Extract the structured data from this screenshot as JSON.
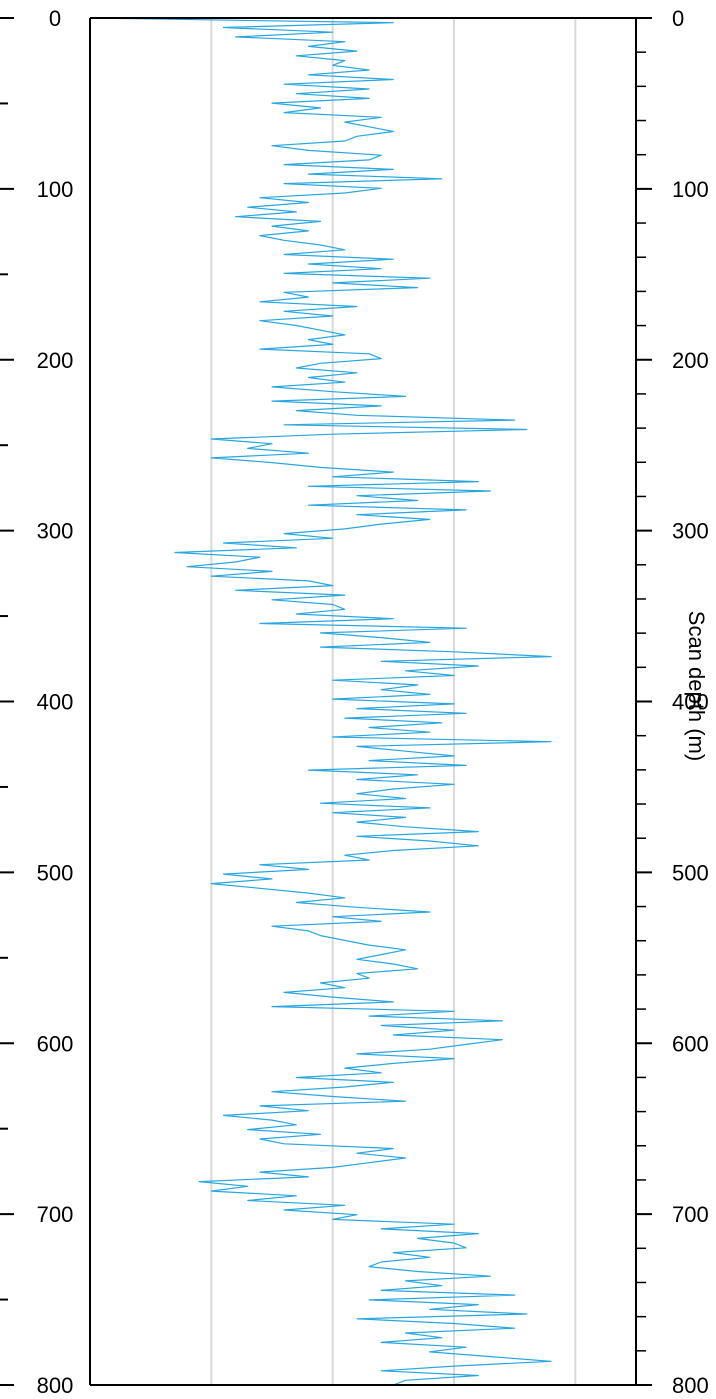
{
  "chart_data": {
    "type": "line",
    "title": "",
    "xlabel": "",
    "ylabel_right": "Scan depth (m)",
    "y_axis": "depth",
    "y_direction": "down",
    "ylim": [
      0,
      800
    ],
    "xlim": [
      0,
      450
    ],
    "y_ticks": [
      0,
      100,
      200,
      300,
      400,
      500,
      600,
      700,
      800
    ],
    "y_tick_labels": [
      "0",
      "100",
      "200",
      "300",
      "400",
      "500",
      "600",
      "700",
      "800"
    ],
    "x_gridlines": [
      100,
      200,
      300,
      400
    ],
    "grid": "vertical",
    "legend": "none",
    "line_color": "#29a6e0",
    "grid_color": "#d9d9d9",
    "axis_color": "#000000",
    "series": [
      {
        "x": [
          0,
          250,
          110,
          200,
          120,
          210,
          180,
          220,
          170,
          210,
          200,
          230,
          180,
          250,
          160,
          230,
          170,
          230,
          150,
          190,
          160,
          240,
          210,
          230,
          250,
          220,
          210,
          150,
          180,
          240,
          230,
          160,
          250,
          180,
          290,
          160,
          240,
          210,
          140,
          180,
          130,
          170,
          120,
          190,
          150,
          180,
          140,
          160,
          190,
          210,
          160,
          250,
          180,
          240,
          160,
          280,
          200,
          270,
          160,
          180,
          140,
          220,
          160,
          200,
          140,
          170,
          190,
          210,
          180,
          200,
          140,
          230,
          240,
          190,
          170,
          220,
          180,
          210,
          150,
          200,
          260,
          150,
          240,
          170,
          220,
          350,
          160,
          360,
          200,
          100,
          150,
          130,
          180,
          100,
          150,
          190,
          250,
          200,
          320,
          180,
          330,
          220,
          270,
          180,
          310,
          220,
          280,
          240,
          210,
          160,
          200,
          110,
          170,
          70,
          140,
          120,
          80,
          150,
          100,
          180,
          200,
          120,
          210,
          150,
          200,
          210,
          170,
          250,
          140,
          310,
          190,
          240,
          280,
          190,
          300,
          380,
          240,
          320,
          260,
          300,
          200,
          270,
          240,
          280,
          200,
          300,
          220,
          310,
          210,
          290,
          230,
          280,
          200,
          380,
          220,
          260,
          300,
          230,
          310,
          180,
          270,
          220,
          300,
          250,
          220,
          260,
          190,
          280,
          200,
          260,
          220,
          260,
          320,
          220,
          280,
          320,
          250,
          210,
          230,
          140,
          180,
          110,
          150,
          100,
          140,
          180,
          210,
          170,
          220,
          280,
          200,
          240,
          150,
          180,
          190,
          210,
          230,
          260,
          240,
          220,
          250,
          270,
          220,
          230,
          190,
          210,
          160,
          200,
          250,
          150,
          300,
          230,
          340,
          240,
          300,
          250,
          340,
          310,
          280,
          220,
          300,
          250,
          210,
          240,
          170,
          250,
          210,
          150,
          200,
          260,
          140,
          180,
          110,
          150,
          170,
          130,
          190,
          140,
          160,
          250,
          220,
          260,
          230,
          200,
          140,
          180,
          90,
          130,
          100,
          170,
          130,
          210,
          160,
          220,
          200,
          300,
          240,
          320,
          270,
          300,
          310,
          250,
          280,
          240,
          230,
          270,
          330,
          260,
          290,
          240,
          350,
          230,
          320,
          280,
          360,
          220,
          300,
          350,
          260,
          290,
          240,
          310,
          280,
          330,
          380,
          300,
          240,
          320,
          260,
          250
        ]
      }
    ]
  }
}
